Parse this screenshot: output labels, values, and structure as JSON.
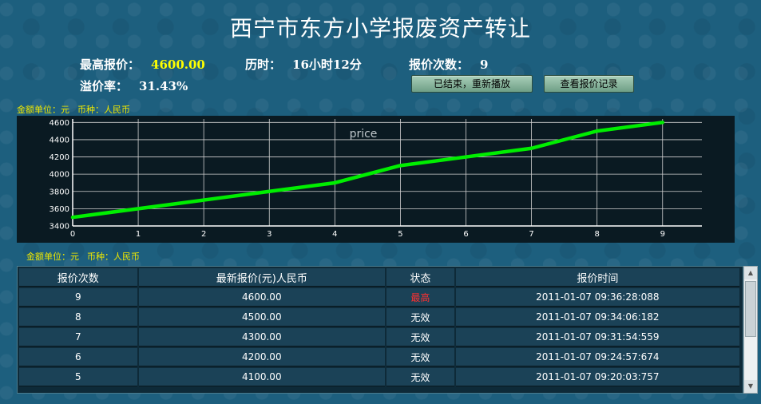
{
  "title": "西宁市东方小学报废资产转让",
  "stats": {
    "max_price_label": "最高报价：",
    "max_price_value": "4600.00",
    "duration_label": "历时：",
    "duration_value": "16小时12分",
    "bid_count_label": "报价次数：",
    "bid_count_value": "9",
    "premium_label": "溢价率：",
    "premium_value": "31.43%"
  },
  "buttons": {
    "replay": "已结束，重新播放",
    "view_records": "查看报价记录"
  },
  "unit_top": {
    "amount": "金额单位：元",
    "currency": "币种：人民币"
  },
  "unit_bottom": {
    "amount": "金额单位：元",
    "currency": "币种：人民币"
  },
  "colors": {
    "line": "#00ee00",
    "best": "#ff3030",
    "highlight": "#ffff00"
  },
  "chart_data": {
    "type": "line",
    "title": "price",
    "x": [
      0,
      1,
      2,
      3,
      4,
      5,
      6,
      7,
      8,
      9
    ],
    "series": [
      {
        "values": [
          3500,
          3600,
          3700,
          3800,
          3900,
          4100,
          4200,
          4300,
          4500,
          4600
        ]
      }
    ],
    "xlim": [
      0,
      9.6
    ],
    "ylim": [
      3400,
      4640
    ],
    "yticks": [
      3400,
      3600,
      3800,
      4000,
      4200,
      4400,
      4600
    ],
    "xticks": [
      0,
      1,
      2,
      3,
      4,
      5,
      6,
      7,
      8,
      9
    ],
    "grid": true
  },
  "table": {
    "headers": [
      "报价次数",
      "最新报价(元)人民币",
      "状态",
      "报价时间"
    ],
    "rows": [
      {
        "count": "9",
        "price": "4600.00",
        "status": "最高",
        "time": "2011-01-07 09:36:28:088"
      },
      {
        "count": "8",
        "price": "4500.00",
        "status": "无效",
        "time": "2011-01-07 09:34:06:182"
      },
      {
        "count": "7",
        "price": "4300.00",
        "status": "无效",
        "time": "2011-01-07 09:31:54:559"
      },
      {
        "count": "6",
        "price": "4200.00",
        "status": "无效",
        "time": "2011-01-07 09:24:57:674"
      },
      {
        "count": "5",
        "price": "4100.00",
        "status": "无效",
        "time": "2011-01-07 09:20:03:757"
      }
    ]
  }
}
